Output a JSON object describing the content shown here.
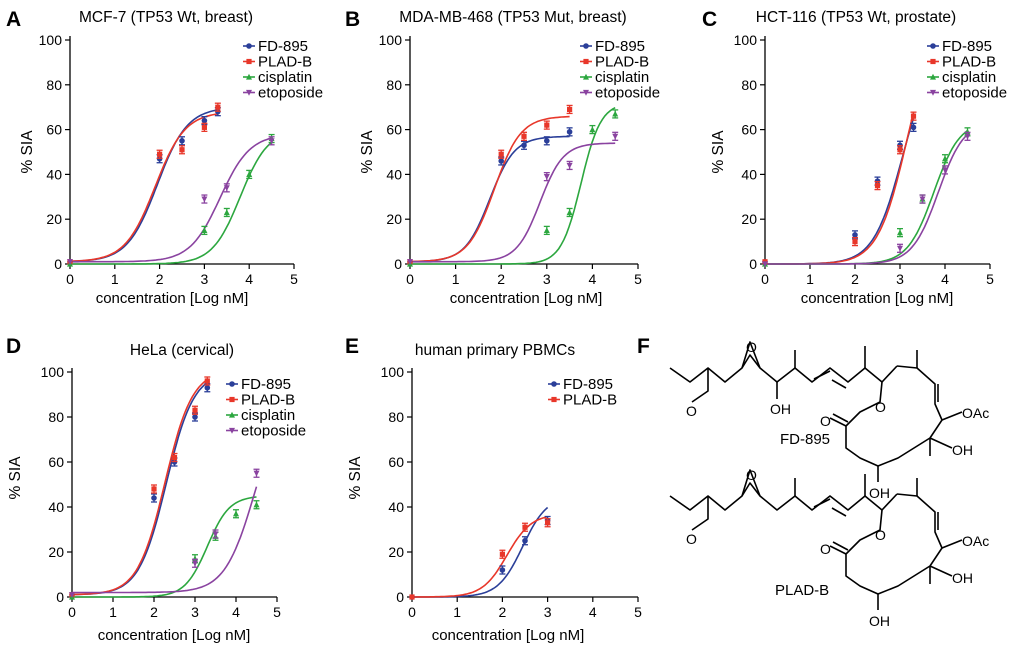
{
  "colors": {
    "FD-895": "#2b3f99",
    "PLAD-B": "#e8372a",
    "cisplatin": "#2ca73f",
    "etoposide": "#8a43a0"
  },
  "structures": {
    "panel_letter": "F",
    "compounds": [
      {
        "name": "FD-895",
        "substituent_labels": [
          "OH",
          "O",
          "O",
          "OAc",
          "OH",
          "OH",
          "O",
          "O"
        ]
      },
      {
        "name": "PLAD-B",
        "substituent_labels": [
          "O",
          "O",
          "O",
          "OAc",
          "OH",
          "OH",
          "O"
        ]
      }
    ]
  },
  "chart_data": [
    {
      "panel": "A",
      "type": "scatter",
      "title": "MCF-7 (TP53 Wt, breast)",
      "xlabel": "concentration [Log nM]",
      "ylabel": "% SIA",
      "xlim": [
        0,
        5
      ],
      "ylim": [
        0,
        100
      ],
      "xticks": [
        "0",
        "1",
        "2",
        "3",
        "4",
        "5"
      ],
      "yticks": [
        "0",
        "20",
        "40",
        "60",
        "80",
        "100"
      ],
      "legend": [
        "FD-895",
        "PLAD-B",
        "cisplatin",
        "etoposide"
      ],
      "series": [
        {
          "name": "FD-895",
          "x": [
            0,
            2,
            2.5,
            3,
            3.3
          ],
          "y": [
            1,
            47,
            55,
            64,
            68
          ],
          "curve": {
            "bottom": 1,
            "top": 70,
            "ec50": 1.95,
            "hill": 1.3,
            "xmax": 3.3
          }
        },
        {
          "name": "PLAD-B",
          "x": [
            0,
            2,
            2.5,
            3,
            3.3
          ],
          "y": [
            1,
            49,
            51,
            61,
            70
          ],
          "curve": {
            "bottom": 1,
            "top": 68,
            "ec50": 1.9,
            "hill": 1.3,
            "xmax": 3.3
          }
        },
        {
          "name": "cisplatin",
          "x": [
            0,
            3,
            3.5,
            4,
            4.5
          ],
          "y": [
            0,
            15,
            23,
            40,
            56
          ],
          "curve": {
            "bottom": 0,
            "top": 60,
            "ec50": 3.8,
            "hill": 1.4,
            "xmax": 4.5
          }
        },
        {
          "name": "etoposide",
          "x": [
            0,
            3,
            3.5,
            4.5
          ],
          "y": [
            1,
            29,
            34,
            55
          ],
          "curve": {
            "bottom": 1,
            "top": 58,
            "ec50": 3.35,
            "hill": 1.3,
            "xmax": 4.5
          }
        }
      ]
    },
    {
      "panel": "B",
      "type": "scatter",
      "title": "MDA-MB-468 (TP53 Mut, breast)",
      "xlabel": "concentration [Log nM]",
      "ylabel": "% SIA",
      "xlim": [
        0,
        5
      ],
      "ylim": [
        0,
        100
      ],
      "xticks": [
        "0",
        "1",
        "2",
        "3",
        "4",
        "5"
      ],
      "yticks": [
        "0",
        "20",
        "40",
        "60",
        "80",
        "100"
      ],
      "legend": [
        "FD-895",
        "PLAD-B",
        "cisplatin",
        "etoposide"
      ],
      "series": [
        {
          "name": "FD-895",
          "x": [
            0,
            2,
            2.5,
            3,
            3.5
          ],
          "y": [
            1,
            46,
            53,
            55,
            59
          ],
          "curve": {
            "bottom": 1,
            "top": 57,
            "ec50": 1.75,
            "hill": 1.6,
            "xmax": 3.5
          }
        },
        {
          "name": "PLAD-B",
          "x": [
            0,
            2,
            2.5,
            3,
            3.5
          ],
          "y": [
            1,
            49,
            57,
            62,
            69
          ],
          "curve": {
            "bottom": 1,
            "top": 66,
            "ec50": 1.85,
            "hill": 1.5,
            "xmax": 3.5
          }
        },
        {
          "name": "cisplatin",
          "x": [
            0,
            3,
            3.5,
            4,
            4.5
          ],
          "y": [
            0,
            15,
            23,
            60,
            67
          ],
          "curve": {
            "bottom": 0,
            "top": 72,
            "ec50": 3.75,
            "hill": 2.0,
            "xmax": 4.5
          }
        },
        {
          "name": "etoposide",
          "x": [
            0,
            3,
            3.5,
            4.5
          ],
          "y": [
            1,
            39,
            44,
            57
          ],
          "curve": {
            "bottom": 1,
            "top": 54,
            "ec50": 2.85,
            "hill": 1.7,
            "xmax": 4.5
          }
        }
      ]
    },
    {
      "panel": "C",
      "type": "scatter",
      "title": "HCT-116 (TP53 Wt, prostate)",
      "xlabel": "concentration [Log nM]",
      "ylabel": "% SIA",
      "xlim": [
        0,
        5
      ],
      "ylim": [
        0,
        100
      ],
      "xticks": [
        "0",
        "1",
        "2",
        "3",
        "4",
        "5"
      ],
      "yticks": [
        "0",
        "20",
        "40",
        "60",
        "80",
        "100"
      ],
      "legend": [
        "FD-895",
        "PLAD-B",
        "cisplatin",
        "etoposide"
      ],
      "series": [
        {
          "name": "FD-895",
          "x": [
            0,
            2,
            2.5,
            3,
            3.3
          ],
          "y": [
            1,
            13,
            37,
            53,
            61
          ],
          "curve": {
            "bottom": 0,
            "top": 95,
            "ec50": 3.05,
            "hill": 1.35,
            "xmax": 3.3
          }
        },
        {
          "name": "PLAD-B",
          "x": [
            0,
            2,
            2.5,
            3,
            3.3
          ],
          "y": [
            1,
            10,
            35,
            51,
            66
          ],
          "curve": {
            "bottom": 0,
            "top": 110,
            "ec50": 3.15,
            "hill": 1.35,
            "xmax": 3.3
          }
        },
        {
          "name": "cisplatin",
          "x": [
            0,
            3,
            3.5,
            4,
            4.5
          ],
          "y": [
            0,
            14,
            29,
            47,
            59
          ],
          "curve": {
            "bottom": 0,
            "top": 64,
            "ec50": 3.75,
            "hill": 1.5,
            "xmax": 4.5
          }
        },
        {
          "name": "etoposide",
          "x": [
            0,
            3,
            3.5,
            4,
            4.5
          ],
          "y": [
            0,
            7,
            29,
            42,
            57
          ],
          "curve": {
            "bottom": 0,
            "top": 64,
            "ec50": 3.85,
            "hill": 1.5,
            "xmax": 4.5
          }
        }
      ]
    },
    {
      "panel": "D",
      "type": "scatter",
      "title": "HeLa (cervical)",
      "xlabel": "concentration [Log nM]",
      "ylabel": "% SIA",
      "xlim": [
        0,
        5
      ],
      "ylim": [
        0,
        100
      ],
      "xticks": [
        "0",
        "1",
        "2",
        "3",
        "4",
        "5"
      ],
      "yticks": [
        "0",
        "20",
        "40",
        "60",
        "80",
        "100"
      ],
      "legend": [
        "FD-895",
        "PLAD-B",
        "cisplatin",
        "etoposide"
      ],
      "series": [
        {
          "name": "FD-895",
          "x": [
            0,
            2,
            2.5,
            3,
            3.3
          ],
          "y": [
            1,
            44,
            60,
            80,
            93
          ],
          "curve": {
            "bottom": 1,
            "top": 100,
            "ec50": 2.3,
            "hill": 1.3,
            "xmax": 3.3
          }
        },
        {
          "name": "PLAD-B",
          "x": [
            0,
            2,
            2.5,
            3,
            3.3
          ],
          "y": [
            1,
            48,
            62,
            83,
            96
          ],
          "curve": {
            "bottom": 1,
            "top": 101,
            "ec50": 2.27,
            "hill": 1.3,
            "xmax": 3.3
          }
        },
        {
          "name": "cisplatin",
          "x": [
            0,
            3,
            3.5,
            4,
            4.5
          ],
          "y": [
            0,
            17,
            27,
            37,
            41
          ],
          "curve": {
            "bottom": 0,
            "top": 45,
            "ec50": 3.3,
            "hill": 1.6,
            "xmax": 4.5
          }
        },
        {
          "name": "etoposide",
          "x": [
            0,
            3,
            3.5,
            4.5
          ],
          "y": [
            1,
            15,
            28,
            55
          ],
          "curve": {
            "bottom": 2,
            "top": 90,
            "ec50": 4.45,
            "hill": 1.2,
            "xmax": 4.5
          }
        }
      ]
    },
    {
      "panel": "E",
      "type": "scatter",
      "title": "human primary PBMCs",
      "xlabel": "concentration [Log nM]",
      "ylabel": "% SIA",
      "xlim": [
        0,
        5
      ],
      "ylim": [
        0,
        100
      ],
      "xticks": [
        "0",
        "1",
        "2",
        "3",
        "4",
        "5"
      ],
      "yticks": [
        "0",
        "20",
        "40",
        "60",
        "80",
        "100"
      ],
      "legend": [
        "FD-895",
        "PLAD-B"
      ],
      "series": [
        {
          "name": "FD-895",
          "x": [
            0,
            2,
            2.5,
            3
          ],
          "y": [
            0,
            12,
            25,
            34
          ],
          "curve": {
            "bottom": 0,
            "top": 45,
            "ec50": 2.45,
            "hill": 1.6,
            "xmax": 3
          }
        },
        {
          "name": "PLAD-B",
          "x": [
            0,
            2,
            2.5,
            3
          ],
          "y": [
            0,
            19,
            31,
            33
          ],
          "curve": {
            "bottom": 0,
            "top": 37,
            "ec50": 2.1,
            "hill": 1.6,
            "xmax": 3
          }
        }
      ]
    }
  ]
}
